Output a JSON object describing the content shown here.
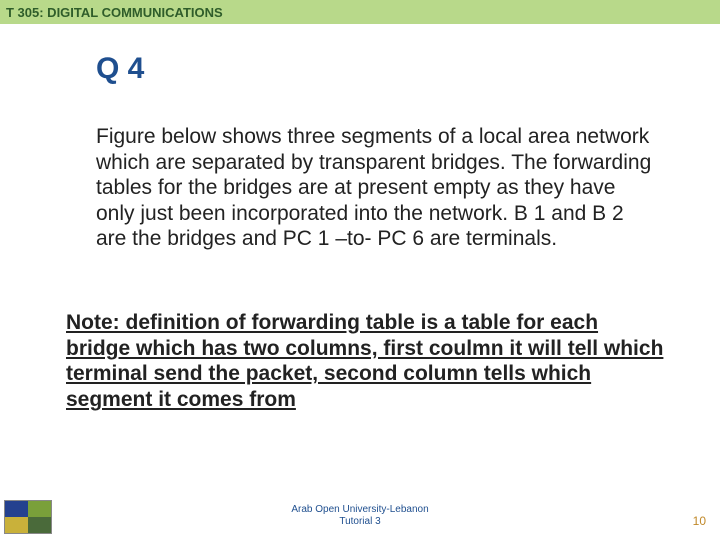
{
  "colors": {
    "header_bg": "#b8d98a",
    "header_text": "#2f5d2a",
    "title_text": "#1f4f8f",
    "body_text": "#222222",
    "footer_text": "#1f4f8f",
    "page_num": "#c08828",
    "logo_tl": "#24418f",
    "logo_tr": "#7aa03a",
    "logo_bl": "#c9b13a",
    "logo_br": "#4a6a3a"
  },
  "header": {
    "title": "T 305: DIGITAL COMMUNICATIONS"
  },
  "question": {
    "label": "Q 4"
  },
  "paragraph": "Figure below shows three segments of a local area network which are separated by transparent bridges. The forwarding tables for the bridges are at present empty as they have only just been incorporated into the network. B 1 and B 2 are the bridges and PC 1 –to- PC 6 are terminals.",
  "note": "Note: definition of forwarding table is a table for each bridge which has two columns, first coulmn it will tell which terminal send the packet, second column tells which segment it comes from",
  "footer": {
    "line1": "Arab Open University-Lebanon",
    "line2": "Tutorial 3",
    "page": "10"
  }
}
